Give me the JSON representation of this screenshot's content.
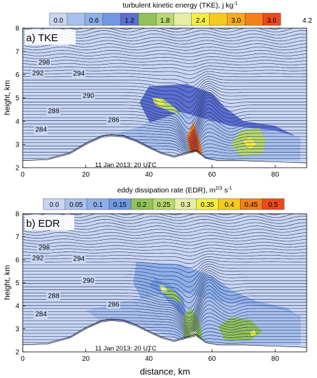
{
  "chart_data": [
    {
      "type": "heatmap",
      "panel_label": "a) TKE",
      "colorbar": {
        "title": "turbulent kinetic energy (TKE), j kg",
        "title_sup": "-1",
        "tick_labels": [
          "0.0",
          "0.6",
          "1.2",
          "1.8",
          "2.4",
          "3.0",
          "3.6",
          "4.2"
        ],
        "tick_values": [
          0.0,
          0.6,
          1.2,
          1.8,
          2.4,
          3.0,
          3.6,
          4.2
        ],
        "min": 0.0,
        "step": 0.3,
        "colors": [
          "#c9d7f3",
          "#a8c1ee",
          "#8eb0ea",
          "#7199e3",
          "#5b6fd1",
          "#92c25c",
          "#b8d970",
          "#e5efa4",
          "#f7ee43",
          "#f6c91e",
          "#f6a91e",
          "#f2801d",
          "#eb4a1d"
        ]
      },
      "ylabel": "height, km",
      "xlim": [
        0,
        90
      ],
      "ylim": [
        2,
        8
      ],
      "x_ticks": [
        0,
        20,
        40,
        60,
        80
      ],
      "y_ticks": [
        2,
        3,
        4,
        5,
        6,
        7,
        8
      ],
      "theta_labels": [
        {
          "text": "298",
          "x": 5,
          "y": 6.43
        },
        {
          "text": "292",
          "x": 3,
          "y": 5.98
        },
        {
          "text": "294",
          "x": 16,
          "y": 5.96
        },
        {
          "text": "290",
          "x": 19,
          "y": 5.0
        },
        {
          "text": "288",
          "x": 8,
          "y": 4.35
        },
        {
          "text": "286",
          "x": 27,
          "y": 3.97
        },
        {
          "text": "284",
          "x": 4,
          "y": 3.55
        }
      ],
      "timestamp": "11 Jan 2013: 20 UTC",
      "terrain": [
        [
          0,
          2.3
        ],
        [
          8,
          2.35
        ],
        [
          15,
          2.6
        ],
        [
          20,
          3.0
        ],
        [
          25,
          3.3
        ],
        [
          28,
          3.36
        ],
        [
          32,
          3.32
        ],
        [
          36,
          3.12
        ],
        [
          40,
          2.85
        ],
        [
          44,
          2.6
        ],
        [
          48,
          2.45
        ],
        [
          52,
          2.6
        ],
        [
          55,
          2.7
        ],
        [
          58,
          2.4
        ],
        [
          62,
          2.3
        ],
        [
          70,
          2.3
        ],
        [
          80,
          2.25
        ],
        [
          90,
          2.2
        ]
      ],
      "regions": [
        {
          "level": 1.2,
          "points": [
            [
              40,
              5.5
            ],
            [
              52,
              5.6
            ],
            [
              60,
              5.2
            ],
            [
              64,
              4.6
            ],
            [
              70,
              4.0
            ],
            [
              80,
              3.8
            ],
            [
              86,
              3.4
            ],
            [
              86,
              2.4
            ],
            [
              60,
              2.3
            ],
            [
              52,
              2.7
            ],
            [
              46,
              3.3
            ],
            [
              40,
              4.0
            ],
            [
              37,
              4.8
            ]
          ]
        },
        {
          "level": 0.3,
          "points": [
            [
              30,
              3.45
            ],
            [
              50,
              4.4
            ],
            [
              58,
              4.1
            ],
            [
              66,
              3.8
            ],
            [
              80,
              3.6
            ],
            [
              88,
              3.3
            ],
            [
              88,
              2.3
            ],
            [
              62,
              2.3
            ],
            [
              52,
              2.7
            ],
            [
              42,
              2.8
            ],
            [
              34,
              3.1
            ]
          ]
        },
        {
          "level": 1.8,
          "points": [
            [
              41,
              5.0
            ],
            [
              44,
              5.0
            ],
            [
              48,
              4.6
            ],
            [
              50,
              4.3
            ],
            [
              47,
              4.4
            ],
            [
              42,
              4.7
            ]
          ]
        },
        {
          "level": 2.4,
          "points": [
            [
              42,
              4.95
            ],
            [
              43.5,
              4.95
            ],
            [
              45,
              4.7
            ],
            [
              43,
              4.7
            ]
          ]
        },
        {
          "level": 3.3,
          "points": [
            [
              52,
              3.3
            ],
            [
              54,
              4.0
            ],
            [
              56,
              3.2
            ],
            [
              57,
              2.6
            ],
            [
              53,
              2.6
            ]
          ]
        },
        {
          "level": 3.9,
          "points": [
            [
              52.5,
              3.2
            ],
            [
              54,
              3.7
            ],
            [
              55.5,
              3.1
            ],
            [
              56,
              2.7
            ],
            [
              53.5,
              2.65
            ]
          ]
        },
        {
          "level": 4.2,
          "points": [
            [
              53.2,
              3.0
            ],
            [
              54.2,
              3.35
            ],
            [
              55,
              2.95
            ],
            [
              55,
              2.8
            ],
            [
              53.8,
              2.8
            ]
          ]
        },
        {
          "level": 1.8,
          "points": [
            [
              66,
              3.0
            ],
            [
              69,
              3.6
            ],
            [
              75,
              3.7
            ],
            [
              77,
              3.2
            ],
            [
              76,
              2.6
            ],
            [
              69,
              2.5
            ]
          ]
        },
        {
          "level": 2.4,
          "points": [
            [
              70,
              3.1
            ],
            [
              72,
              3.3
            ],
            [
              74,
              3.0
            ],
            [
              72,
              2.8
            ]
          ]
        }
      ]
    },
    {
      "type": "heatmap",
      "panel_label": "b) EDR",
      "colorbar": {
        "title": "eddy dissipation rate (EDR), m",
        "title_sup": "2/3",
        "title_tail": " s",
        "title_tail_sup": "-1",
        "tick_labels": [
          "0.0",
          "0.05",
          "0.1",
          "0.15",
          "0.2",
          "0.25",
          "0.3",
          "0.35",
          "0.4",
          "0.45",
          "0.5"
        ],
        "tick_values": [
          0.0,
          0.05,
          0.1,
          0.15,
          0.2,
          0.25,
          0.3,
          0.35,
          0.4,
          0.45,
          0.5
        ],
        "min": 0.0,
        "step": 0.05,
        "colors": [
          "#c9d7f3",
          "#a8c1ee",
          "#8eb0ea",
          "#7199e3",
          "#92c25c",
          "#b8d970",
          "#e5efa4",
          "#f7ee43",
          "#f6c91e",
          "#f2801d",
          "#eb4a1d"
        ]
      },
      "xlabel": "distance, km",
      "ylabel": "height, km",
      "xlim": [
        0,
        90
      ],
      "ylim": [
        2,
        8
      ],
      "x_ticks": [
        0,
        20,
        40,
        60,
        80
      ],
      "y_ticks": [
        2,
        3,
        4,
        5,
        6,
        7,
        8
      ],
      "theta_labels": [
        {
          "text": "298",
          "x": 5,
          "y": 6.43
        },
        {
          "text": "292",
          "x": 3,
          "y": 5.98
        },
        {
          "text": "294",
          "x": 16,
          "y": 5.96
        },
        {
          "text": "290",
          "x": 19,
          "y": 5.0
        },
        {
          "text": "288",
          "x": 8,
          "y": 4.35
        },
        {
          "text": "286",
          "x": 27,
          "y": 3.97
        },
        {
          "text": "284",
          "x": 4,
          "y": 3.55
        }
      ],
      "timestamp": "11 Jan 2013: 20 UTC",
      "terrain": [
        [
          0,
          2.3
        ],
        [
          8,
          2.35
        ],
        [
          15,
          2.6
        ],
        [
          20,
          3.0
        ],
        [
          25,
          3.3
        ],
        [
          28,
          3.36
        ],
        [
          32,
          3.32
        ],
        [
          36,
          3.12
        ],
        [
          40,
          2.85
        ],
        [
          44,
          2.6
        ],
        [
          48,
          2.45
        ],
        [
          52,
          2.6
        ],
        [
          55,
          2.7
        ],
        [
          58,
          2.4
        ],
        [
          62,
          2.3
        ],
        [
          70,
          2.3
        ],
        [
          80,
          2.25
        ],
        [
          90,
          2.2
        ]
      ],
      "regions": [
        {
          "level": 0.1,
          "points": [
            [
              36,
              5.9
            ],
            [
              50,
              5.8
            ],
            [
              60,
              5.3
            ],
            [
              66,
              4.7
            ],
            [
              74,
              4.2
            ],
            [
              84,
              3.9
            ],
            [
              88,
              3.5
            ],
            [
              88,
              2.3
            ],
            [
              60,
              2.3
            ],
            [
              52,
              2.7
            ],
            [
              44,
              3.2
            ],
            [
              38,
              4.2
            ],
            [
              35,
              5.0
            ]
          ]
        },
        {
          "level": 0.05,
          "points": [
            [
              20,
              3.8
            ],
            [
              36,
              4.3
            ],
            [
              50,
              4.6
            ],
            [
              62,
              4.2
            ],
            [
              80,
              3.9
            ],
            [
              88,
              3.6
            ],
            [
              88,
              2.3
            ],
            [
              62,
              2.3
            ],
            [
              48,
              2.6
            ],
            [
              36,
              3.2
            ],
            [
              24,
              3.4
            ]
          ]
        },
        {
          "level": 0.15,
          "points": [
            [
              42,
              5.2
            ],
            [
              47,
              4.9
            ],
            [
              51,
              4.3
            ],
            [
              52,
              3.4
            ],
            [
              49,
              3.8
            ],
            [
              44,
              4.5
            ],
            [
              40,
              4.9
            ]
          ]
        },
        {
          "level": 0.2,
          "points": [
            [
              43,
              4.95
            ],
            [
              48,
              4.65
            ],
            [
              51,
              4.1
            ],
            [
              48,
              4.25
            ],
            [
              44,
              4.6
            ]
          ]
        },
        {
          "level": 0.3,
          "points": [
            [
              43.5,
              4.9
            ],
            [
              45,
              4.85
            ],
            [
              46,
              4.6
            ],
            [
              44,
              4.6
            ]
          ]
        },
        {
          "level": 0.2,
          "points": [
            [
              51,
              3.6
            ],
            [
              53.5,
              3.9
            ],
            [
              56,
              3.3
            ],
            [
              57,
              2.7
            ],
            [
              55,
              2.4
            ],
            [
              51,
              2.6
            ]
          ]
        },
        {
          "level": 0.3,
          "points": [
            [
              53,
              2.9
            ],
            [
              55,
              2.9
            ],
            [
              55.5,
              2.6
            ],
            [
              53.5,
              2.5
            ]
          ]
        },
        {
          "level": 0.2,
          "points": [
            [
              62,
              3.1
            ],
            [
              66,
              3.5
            ],
            [
              72,
              3.4
            ],
            [
              76,
              2.9
            ],
            [
              72,
              2.5
            ],
            [
              64,
              2.5
            ]
          ]
        },
        {
          "level": 0.35,
          "points": [
            [
              72,
              2.85
            ],
            [
              73.5,
              2.95
            ],
            [
              74,
              2.75
            ],
            [
              72.5,
              2.7
            ]
          ]
        }
      ]
    }
  ]
}
